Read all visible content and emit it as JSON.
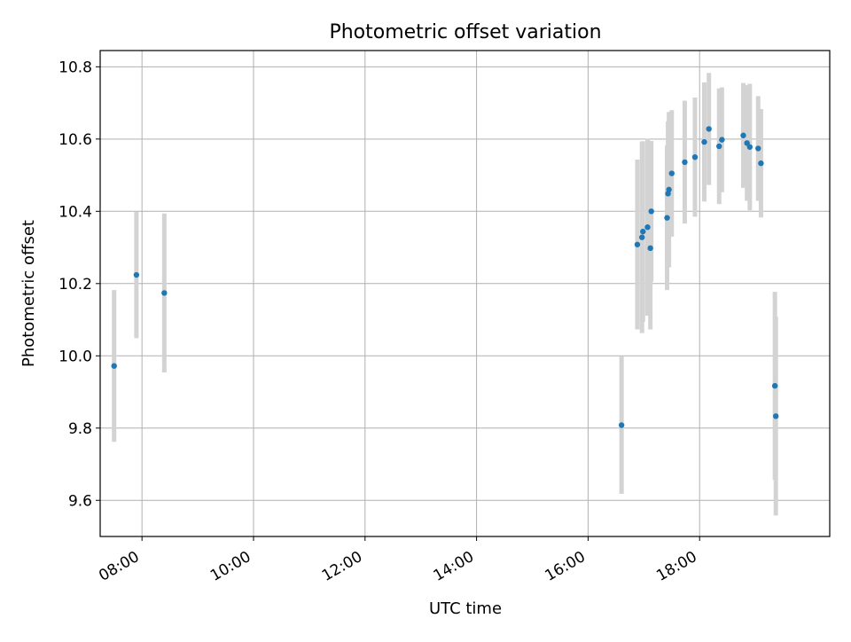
{
  "chart_data": {
    "type": "scatter",
    "title": "Photometric offset variation",
    "xlabel": "UTC time",
    "ylabel": "Photometric offset",
    "x_unit": "UTC time",
    "xlim": [
      "07:15",
      "20:20"
    ],
    "ylim": [
      9.5,
      10.845
    ],
    "grid": true,
    "x_ticks": [
      "08:00",
      "10:00",
      "12:00",
      "14:00",
      "16:00",
      "18:00"
    ],
    "y_ticks": [
      "9.6",
      "9.8",
      "10.0",
      "10.2",
      "10.4",
      "10.6",
      "10.8"
    ],
    "x_tick_values": [
      "08:00",
      "10:00",
      "12:00",
      "14:00",
      "16:00",
      "18:00"
    ],
    "y_tick_values": [
      9.6,
      9.8,
      10.0,
      10.2,
      10.4,
      10.6,
      10.8
    ],
    "marker_color": "#1f77b4",
    "errorbar_color": "#d3d3d3",
    "points": [
      {
        "x": "07:30",
        "y": 9.972,
        "err": 0.21
      },
      {
        "x": "07:54",
        "y": 10.224,
        "err": 0.175
      },
      {
        "x": "08:24",
        "y": 10.174,
        "err": 0.22
      },
      {
        "x": "16:36",
        "y": 9.808,
        "err": 0.19
      },
      {
        "x": "16:53",
        "y": 10.308,
        "err": 0.235
      },
      {
        "x": "16:58",
        "y": 10.328,
        "err": 0.265
      },
      {
        "x": "16:59",
        "y": 10.344,
        "err": 0.25
      },
      {
        "x": "17:04",
        "y": 10.356,
        "err": 0.245
      },
      {
        "x": "17:07",
        "y": 10.298,
        "err": 0.225
      },
      {
        "x": "17:08",
        "y": 10.4,
        "err": 0.195
      },
      {
        "x": "17:25",
        "y": 10.382,
        "err": 0.2
      },
      {
        "x": "17:26",
        "y": 10.449,
        "err": 0.2
      },
      {
        "x": "17:27",
        "y": 10.46,
        "err": 0.215
      },
      {
        "x": "17:30",
        "y": 10.505,
        "err": 0.175
      },
      {
        "x": "17:44",
        "y": 10.536,
        "err": 0.17
      },
      {
        "x": "17:55",
        "y": 10.55,
        "err": 0.165
      },
      {
        "x": "18:05",
        "y": 10.592,
        "err": 0.165
      },
      {
        "x": "18:10",
        "y": 10.628,
        "err": 0.155
      },
      {
        "x": "18:21",
        "y": 10.58,
        "err": 0.16
      },
      {
        "x": "18:24",
        "y": 10.598,
        "err": 0.145
      },
      {
        "x": "18:47",
        "y": 10.61,
        "err": 0.145
      },
      {
        "x": "18:51",
        "y": 10.589,
        "err": 0.16
      },
      {
        "x": "18:54",
        "y": 10.578,
        "err": 0.175
      },
      {
        "x": "19:03",
        "y": 10.574,
        "err": 0.145
      },
      {
        "x": "19:06",
        "y": 10.533,
        "err": 0.15
      },
      {
        "x": "19:21",
        "y": 9.917,
        "err": 0.26
      },
      {
        "x": "19:22",
        "y": 9.833,
        "err": 0.275
      }
    ]
  }
}
